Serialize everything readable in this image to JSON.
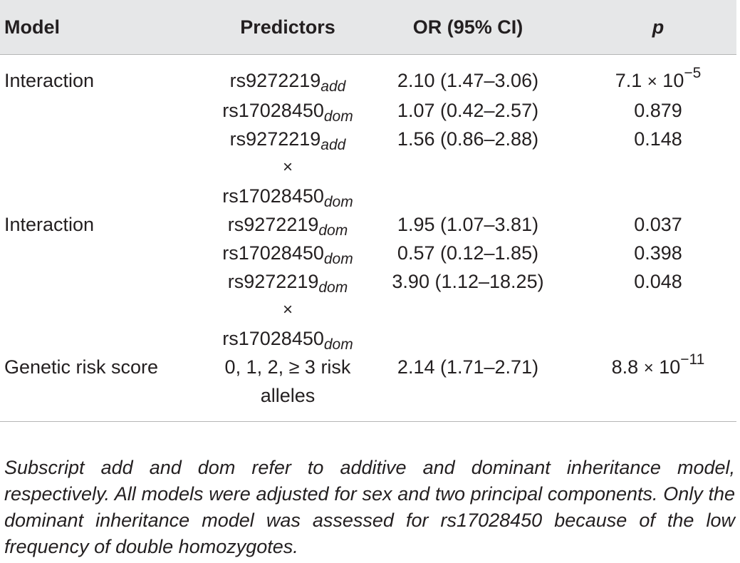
{
  "table": {
    "headers": {
      "model": "Model",
      "predictors": "Predictors",
      "or": "OR (95% CI)",
      "p": "p"
    },
    "rows": [
      {
        "model": "Interaction",
        "predictors": [
          {
            "base": "rs9272219",
            "sub": "add"
          },
          {
            "base": "rs17028450",
            "sub": "dom"
          },
          {
            "line1_base": "rs9272219",
            "line1_sub": "add",
            "times": "×",
            "line3_base": "rs17028450",
            "line3_sub": "dom"
          }
        ],
        "or": [
          "2.10 (1.47–3.06)",
          "1.07 (0.42–2.57)",
          "1.56 (0.86–2.88)"
        ],
        "p": [
          {
            "mantissa": "7.1",
            "times": "×",
            "base": "10",
            "exp": "−5"
          },
          {
            "text": "0.879"
          },
          {
            "text": "0.148"
          }
        ]
      },
      {
        "model": "Interaction",
        "predictors": [
          {
            "base": "rs9272219",
            "sub": "dom"
          },
          {
            "base": "rs17028450",
            "sub": "dom"
          },
          {
            "line1_base": "rs9272219",
            "line1_sub": "dom",
            "times": "×",
            "line3_base": "rs17028450",
            "line3_sub": "dom"
          }
        ],
        "or": [
          "1.95 (1.07–3.81)",
          "0.57 (0.12–1.85)",
          "3.90 (1.12–18.25)"
        ],
        "p": [
          {
            "text": "0.037"
          },
          {
            "text": "0.398"
          },
          {
            "text": "0.048"
          }
        ]
      },
      {
        "model": "Genetic risk score",
        "predictors_line1": "0, 1, 2, ≥ 3 risk",
        "predictors_line2": "alleles",
        "or": "2.14 (1.71–2.71)",
        "p": {
          "mantissa": "8.8",
          "times": "×",
          "base": "10",
          "exp": "−11"
        }
      }
    ]
  },
  "footnote": "Subscript add and dom refer to additive and dominant inheritance model, respectively. All models were adjusted for sex and two principal components. Only the dominant inheritance model was assessed for rs17028450 because of the low frequency of double homozygotes."
}
